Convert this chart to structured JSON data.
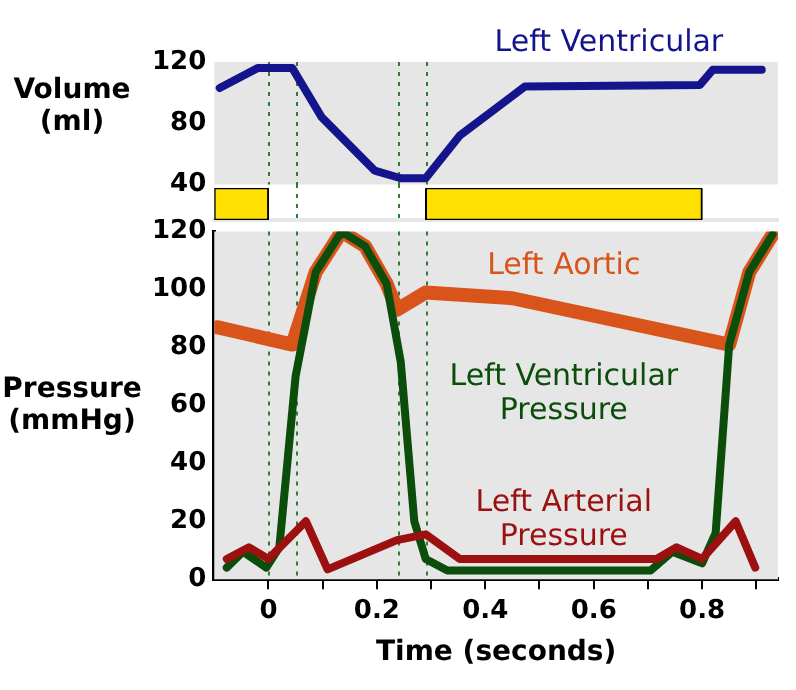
{
  "chart_data": [
    {
      "type": "line",
      "ylabel": "Volume (ml)",
      "xlim": [
        -0.1,
        0.94
      ],
      "ylim": [
        40,
        120
      ],
      "yticks": [
        40,
        80,
        120
      ],
      "tick_labels": "y",
      "grid": false,
      "line_style": "solid",
      "marker": "none",
      "series": [
        {
          "name": "Left Ventricular",
          "color": "#14148c",
          "x": [
            -0.09,
            -0.02,
            0.044,
            0.098,
            0.196,
            0.244,
            0.29,
            0.353,
            0.473,
            0.796,
            0.82,
            0.91
          ],
          "values": [
            103,
            116,
            116,
            84,
            49,
            44,
            44,
            72,
            104,
            105,
            115,
            115
          ]
        }
      ],
      "ref_lines": [
        {
          "axis": "x",
          "value": 0,
          "color": "#2e7d32",
          "line_style": "dotted"
        },
        {
          "axis": "x",
          "value": 0.05,
          "color": "#2e7d32",
          "line_style": "dotted"
        },
        {
          "axis": "x",
          "value": 0.24,
          "color": "#2e7d32",
          "line_style": "dotted"
        },
        {
          "axis": "x",
          "value": 0.29,
          "color": "#2e7d32",
          "line_style": "dotted"
        }
      ]
    },
    {
      "type": "bar",
      "orientation": "horizontal",
      "categories": [
        null
      ],
      "xlim": [
        -0.1,
        0.94
      ],
      "tick_labels": false,
      "grid": false,
      "series": [
        {
          "color": "#ffe000",
          "values": [
            0.1
          ],
          "base": [
            -0.1
          ]
        },
        {
          "color": "#ffe000",
          "values": [
            0.51
          ],
          "base": [
            0.29
          ]
        }
      ],
      "ref_lines": [
        {
          "axis": "x",
          "value": 0.05,
          "color": "#2e7d32",
          "line_style": "dotted"
        },
        {
          "axis": "x",
          "value": 0.24,
          "color": "#2e7d32",
          "line_style": "dotted"
        }
      ]
    },
    {
      "type": "line",
      "xlabel": "Time (seconds)",
      "ylabel": "Pressure (mmHg)",
      "xlim": [
        -0.1,
        0.94
      ],
      "xticks": [
        0,
        {
          "value": 0.1,
          "label": null
        },
        0.2,
        {
          "value": 0.3,
          "label": null
        },
        0.4,
        {
          "value": 0.5,
          "label": null
        },
        0.6,
        {
          "value": 0.7,
          "label": null
        },
        0.8,
        {
          "value": 0.9,
          "label": null
        }
      ],
      "ylim": [
        0,
        120
      ],
      "yticks": [
        0,
        20,
        40,
        60,
        80,
        100,
        120
      ],
      "grid": false,
      "line_style": "solid",
      "marker": "none",
      "series": [
        {
          "name": "Left Aortic",
          "color": "#d9541a",
          "x": [
            -0.095,
            0.044,
            0.087,
            0.135,
            0.178,
            0.218,
            0.237,
            0.29,
            0.45,
            0.85,
            0.887,
            0.93
          ],
          "values": [
            87,
            81,
            106,
            120,
            115,
            102,
            93,
            99,
            97,
            81,
            106,
            119
          ]
        },
        {
          "name": "Left Ventricular Pressure",
          "color": "#0b4d0b",
          "x": [
            -0.077,
            -0.047,
            -0.004,
            0.02,
            0.05,
            0.087,
            0.135,
            0.178,
            0.218,
            0.244,
            0.269,
            0.29,
            0.33,
            0.705,
            0.745,
            0.8,
            0.825,
            0.85,
            0.887,
            0.93
          ],
          "values": [
            4,
            9.5,
            4,
            11,
            70,
            106,
            120,
            115,
            102,
            75,
            20,
            7,
            3,
            3,
            9.5,
            5.5,
            16,
            81,
            106,
            119
          ]
        },
        {
          "name": "Left Arterial Pressure",
          "color": "#9c1010",
          "x": [
            -0.077,
            -0.036,
            0,
            0.069,
            0.109,
            0.237,
            0.29,
            0.353,
            0.716,
            0.753,
            0.8,
            0.862,
            0.898
          ],
          "values": [
            7,
            11,
            7,
            20,
            3.4,
            13.5,
            15.5,
            7,
            7,
            11,
            7,
            20,
            4
          ]
        }
      ],
      "ref_lines": [
        {
          "axis": "x",
          "value": 0,
          "color": "#2e7d32",
          "line_style": "dotted"
        },
        {
          "axis": "x",
          "value": 0.05,
          "color": "#2e7d32",
          "line_style": "dotted"
        },
        {
          "axis": "x",
          "value": 0.24,
          "color": "#2e7d32",
          "line_style": "dotted"
        },
        {
          "axis": "x",
          "value": 0.29,
          "color": "#2e7d32",
          "line_style": "dotted"
        }
      ]
    }
  ]
}
